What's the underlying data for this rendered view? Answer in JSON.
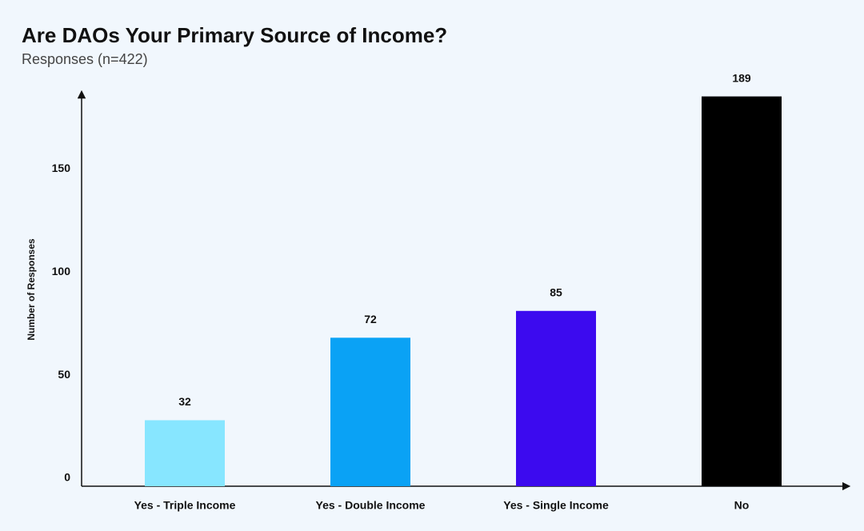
{
  "chart_data": {
    "type": "bar",
    "title": "Are DAOs Your Primary Source of Income?",
    "subtitle": "Responses (n=422)",
    "y_label": "Number of Responses",
    "categories": [
      "Yes - Triple Income",
      "Yes - Double Income",
      "Yes - Single Income",
      "No"
    ],
    "values": [
      32,
      72,
      85,
      189
    ],
    "colors": [
      "#87e6ff",
      "#0aa2f5",
      "#3c0aef",
      "#000000"
    ],
    "ylim": [
      0,
      190
    ],
    "yticks": [
      0,
      50,
      100,
      150
    ],
    "grid": false
  }
}
